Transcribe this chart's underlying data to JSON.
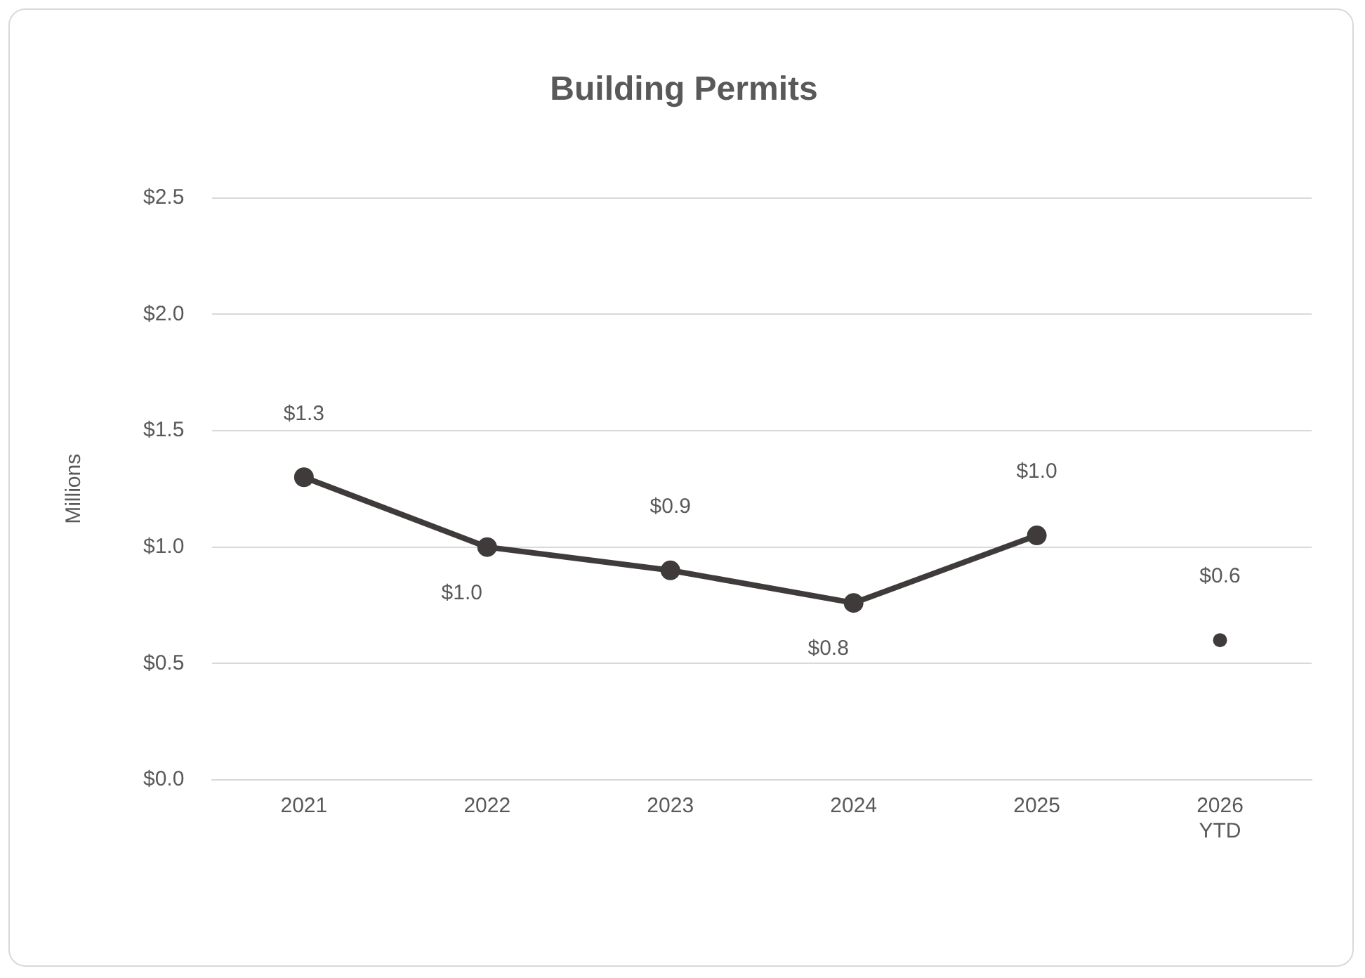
{
  "chart_data": {
    "type": "line",
    "title": "Building Permits",
    "ylabel": "Millions",
    "categories": [
      "2021",
      "2022",
      "2023",
      "2024",
      "2025",
      "2026\nYTD"
    ],
    "series": [
      {
        "color": "#403b3b",
        "values": [
          1.3,
          1.0,
          0.9,
          0.76,
          1.05,
          null
        ],
        "value_labels": [
          "$1.3",
          "$1.0",
          "$0.9",
          "$0.8",
          "$1.0",
          null
        ]
      },
      {
        "type": "scatter",
        "color": "#403b3b",
        "values": [
          null,
          null,
          null,
          null,
          null,
          0.6
        ],
        "value_labels": [
          null,
          null,
          null,
          null,
          null,
          "$0.6"
        ]
      }
    ],
    "ylim": [
      0,
      2.5
    ],
    "yticks": [
      {
        "value": 0,
        "label": "$0.0"
      },
      {
        "value": 0.5,
        "label": "$0.5"
      },
      {
        "value": 1,
        "label": "$1.0"
      },
      {
        "value": 1.5,
        "label": "$1.5"
      },
      {
        "value": 2,
        "label": "$2.0"
      },
      {
        "value": 2.5,
        "label": "$2.5"
      }
    ],
    "grid": "y",
    "legend": false,
    "marker": "circle",
    "line_style": "solid"
  }
}
